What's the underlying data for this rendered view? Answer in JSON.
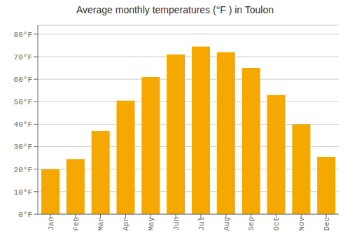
{
  "chart_data": {
    "type": "bar",
    "title": "Average monthly temperatures (°F ) in Toulon",
    "categories": [
      "Jan",
      "Feb",
      "Mar",
      "Apr",
      "May",
      "Jun",
      "Jul",
      "Aug",
      "Sep",
      "Oct",
      "Nov",
      "Dec"
    ],
    "values": [
      20,
      24.5,
      37,
      50.5,
      61,
      71,
      74.5,
      72,
      65,
      53,
      40,
      25.5
    ],
    "color": "#F5A800",
    "ylim": [
      0,
      84
    ],
    "yticks": [
      {
        "value": 0,
        "label": "0°F"
      },
      {
        "value": 10,
        "label": "10°F"
      },
      {
        "value": 20,
        "label": "20°F"
      },
      {
        "value": 30,
        "label": "30°F"
      },
      {
        "value": 40,
        "label": "40°F"
      },
      {
        "value": 50,
        "label": "50°F"
      },
      {
        "value": 60,
        "label": "60°F"
      },
      {
        "value": 70,
        "label": "70°F"
      },
      {
        "value": 80,
        "label": "80°F"
      }
    ],
    "grid": true
  }
}
